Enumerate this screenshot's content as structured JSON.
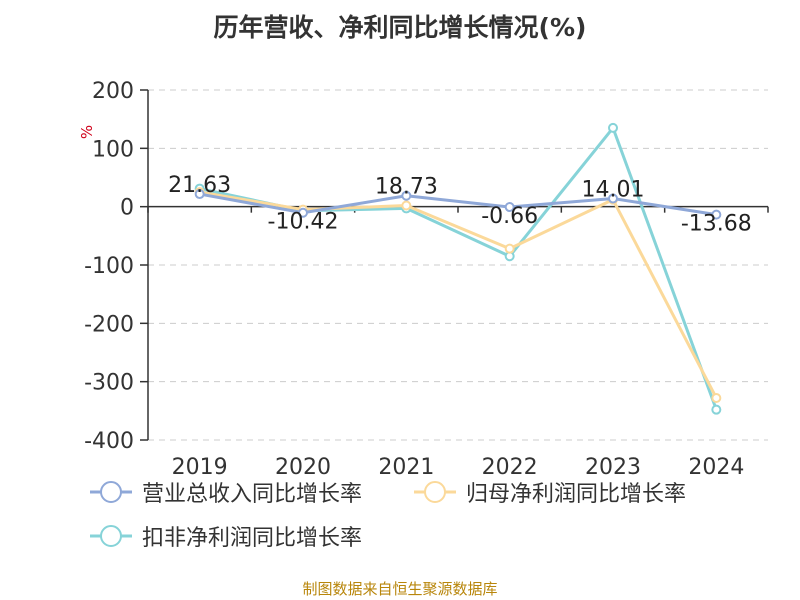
{
  "title": "历年营收、净利同比增长情况(%)",
  "source": "制图数据来自恒生聚源数据库",
  "chart_data": {
    "type": "line",
    "title": "历年营收、净利同比增长情况(%)",
    "ylabel": "%",
    "xlabel": "",
    "categories": [
      "2019",
      "2020",
      "2021",
      "2022",
      "2023",
      "2024"
    ],
    "ylim": [
      -400,
      200
    ],
    "yticks": [
      200,
      100,
      0,
      -100,
      -200,
      -300,
      -400
    ],
    "grid": true,
    "legend_position": "bottom-left",
    "series": [
      {
        "name": "营业总收入同比增长率",
        "color": "#8fa8d8",
        "values": [
          21.63,
          -10.42,
          18.73,
          -0.66,
          14.01,
          -13.68
        ],
        "labels": [
          "21.63",
          "-10.42",
          "18.73",
          "-0.66",
          "14.01",
          "-13.68"
        ]
      },
      {
        "name": "归母净利润同比增长率",
        "color": "#fbd99a",
        "values": [
          25,
          -5,
          2,
          -72,
          12,
          -328
        ]
      },
      {
        "name": "扣非净利润同比增长率",
        "color": "#86d3d8",
        "values": [
          31,
          -7,
          -3,
          -85,
          135,
          -348
        ]
      }
    ]
  }
}
